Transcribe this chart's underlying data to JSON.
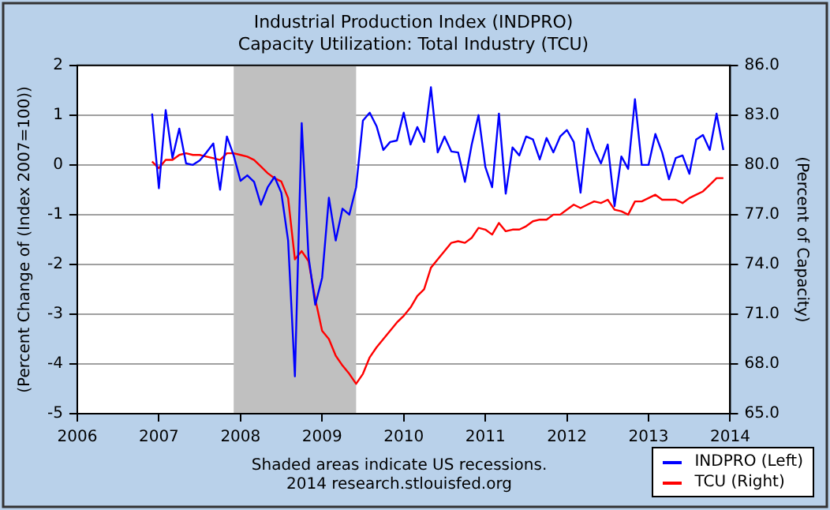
{
  "chart_data": {
    "type": "line",
    "title": "Industrial Production Index (INDPRO)",
    "subtitle": "Capacity Utilization: Total Industry (TCU)",
    "ylabel": "(Percent Change of (Index 2007=100))",
    "y2label": "(Percent of Capacity)",
    "annotations": [
      "Shaded areas indicate US recessions.",
      "2014 research.stlouisfed.org"
    ],
    "x": [
      "2006-12",
      "2007-01",
      "2007-02",
      "2007-03",
      "2007-04",
      "2007-05",
      "2007-06",
      "2007-07",
      "2007-08",
      "2007-09",
      "2007-10",
      "2007-11",
      "2007-12",
      "2008-01",
      "2008-02",
      "2008-03",
      "2008-04",
      "2008-05",
      "2008-06",
      "2008-07",
      "2008-08",
      "2008-09",
      "2008-10",
      "2008-11",
      "2008-12",
      "2009-01",
      "2009-02",
      "2009-03",
      "2009-04",
      "2009-05",
      "2009-06",
      "2009-07",
      "2009-08",
      "2009-09",
      "2009-10",
      "2009-11",
      "2009-12",
      "2010-01",
      "2010-02",
      "2010-03",
      "2010-04",
      "2010-05",
      "2010-06",
      "2010-07",
      "2010-08",
      "2010-09",
      "2010-10",
      "2010-11",
      "2010-12",
      "2011-01",
      "2011-02",
      "2011-03",
      "2011-04",
      "2011-05",
      "2011-06",
      "2011-07",
      "2011-08",
      "2011-09",
      "2011-10",
      "2011-11",
      "2011-12",
      "2012-01",
      "2012-02",
      "2012-03",
      "2012-04",
      "2012-05",
      "2012-06",
      "2012-07",
      "2012-08",
      "2012-09",
      "2012-10",
      "2012-11",
      "2012-12",
      "2013-01",
      "2013-02",
      "2013-03",
      "2013-04",
      "2013-05",
      "2013-06",
      "2013-07",
      "2013-08",
      "2013-09",
      "2013-10",
      "2013-11",
      "2013-12"
    ],
    "series": [
      {
        "name": "INDPRO (Left)",
        "color": "#0000ff",
        "values": [
          1.03,
          -0.47,
          1.1,
          0.14,
          0.73,
          0.03,
          0.0,
          0.09,
          0.25,
          0.43,
          -0.5,
          0.57,
          0.19,
          -0.32,
          -0.21,
          -0.34,
          -0.8,
          -0.45,
          -0.24,
          -0.56,
          -1.52,
          -4.25,
          0.84,
          -1.84,
          -2.81,
          -2.27,
          -0.66,
          -1.52,
          -0.88,
          -1.0,
          -0.45,
          0.89,
          1.05,
          0.78,
          0.3,
          0.46,
          0.49,
          1.05,
          0.41,
          0.76,
          0.46,
          1.56,
          0.25,
          0.57,
          0.27,
          0.25,
          -0.34,
          0.41,
          1.0,
          -0.04,
          -0.45,
          1.03,
          -0.58,
          0.35,
          0.19,
          0.57,
          0.51,
          0.11,
          0.54,
          0.25,
          0.57,
          0.7,
          0.46,
          -0.56,
          0.73,
          0.32,
          0.03,
          0.41,
          -0.83,
          0.17,
          -0.08,
          1.32,
          0.0,
          0.0,
          0.62,
          0.25,
          -0.29,
          0.14,
          0.19,
          -0.18,
          0.51,
          0.6,
          0.3,
          1.03,
          0.3
        ]
      },
      {
        "name": "TCU (Right)",
        "color": "#ff0000",
        "axis": "y2",
        "values": [
          80.2,
          79.8,
          80.3,
          80.3,
          80.6,
          80.7,
          80.6,
          80.6,
          80.5,
          80.4,
          80.3,
          80.7,
          80.7,
          80.6,
          80.5,
          80.3,
          79.9,
          79.5,
          79.2,
          79.0,
          78.0,
          74.3,
          74.8,
          74.2,
          71.9,
          70.0,
          69.5,
          68.5,
          67.9,
          67.4,
          66.8,
          67.4,
          68.4,
          69.0,
          69.5,
          70.0,
          70.5,
          70.9,
          71.4,
          72.1,
          72.5,
          73.8,
          74.3,
          74.8,
          75.3,
          75.4,
          75.3,
          75.6,
          76.2,
          76.1,
          75.8,
          76.5,
          76.0,
          76.1,
          76.1,
          76.3,
          76.6,
          76.7,
          76.7,
          77.0,
          77.0,
          77.3,
          77.6,
          77.4,
          77.6,
          77.8,
          77.7,
          77.9,
          77.3,
          77.2,
          77.0,
          77.8,
          77.8,
          78.0,
          78.2,
          77.9,
          77.9,
          77.9,
          77.7,
          78.0,
          78.2,
          78.4,
          78.8,
          79.2,
          79.2
        ]
      }
    ],
    "xlim": [
      "2006",
      "2014"
    ],
    "xticks": [
      "2006",
      "2007",
      "2008",
      "2009",
      "2010",
      "2011",
      "2012",
      "2013",
      "2014"
    ],
    "ylim": [
      -5,
      2
    ],
    "yticks": [
      -5,
      -4,
      -3,
      -2,
      -1,
      0,
      1,
      2
    ],
    "y2lim": [
      65,
      86
    ],
    "y2ticks": [
      {
        "value": 65,
        "label": "65.0"
      },
      {
        "value": 68,
        "label": "68.0"
      },
      {
        "value": 71,
        "label": "71.0"
      },
      {
        "value": 74,
        "label": "74.0"
      },
      {
        "value": 77,
        "label": "77.0"
      },
      {
        "value": 80,
        "label": "80.0"
      },
      {
        "value": 83,
        "label": "83.0"
      },
      {
        "value": 86,
        "label": "86.0"
      }
    ],
    "bands": [
      {
        "axis": "x",
        "from": "2007-12",
        "to": "2009-06",
        "color": "#c0c0c0"
      }
    ],
    "grid": "y",
    "legend": "bottom right",
    "line_style": "solid",
    "marker": "none"
  }
}
